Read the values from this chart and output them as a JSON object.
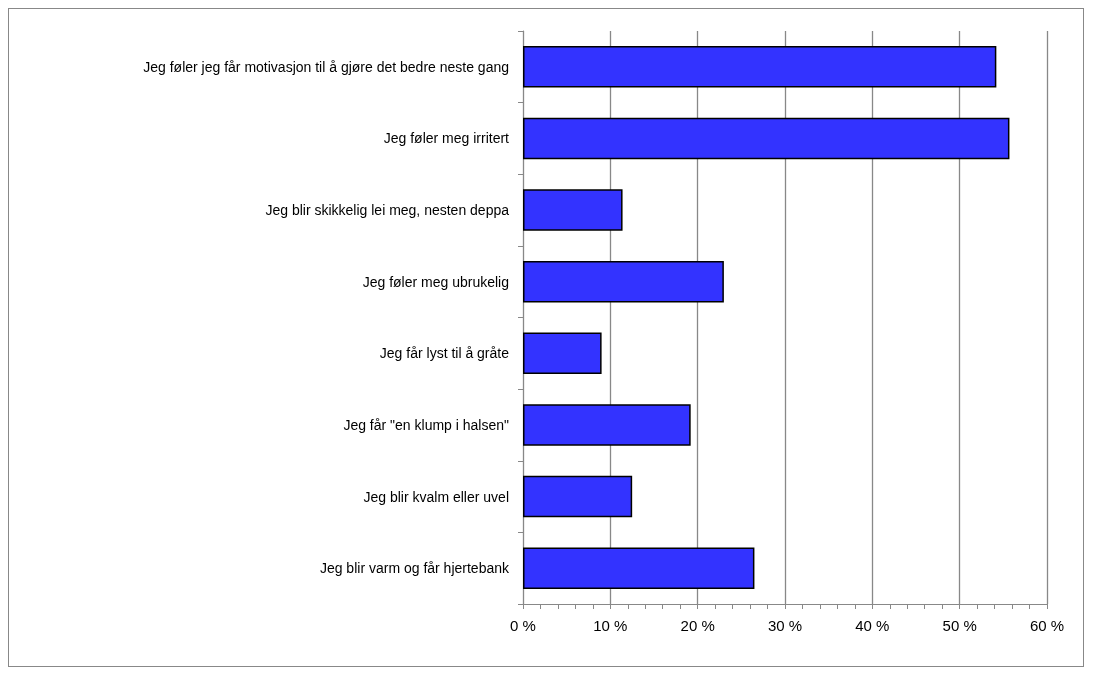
{
  "chart_data": {
    "type": "bar",
    "orientation": "horizontal",
    "categories": [
      "Jeg føler jeg får motivasjon til å gjøre det bedre neste gang",
      "Jeg føler meg irritert",
      "Jeg blir skikkelig lei meg, nesten deppa",
      "Jeg føler meg ubrukelig",
      "Jeg får lyst til å gråte",
      "Jeg får \"en klump i halsen\"",
      "Jeg blir kvalm eller uvel",
      "Jeg blir varm og får hjertebank"
    ],
    "values": [
      54.2,
      55.7,
      11.4,
      23.0,
      9.0,
      19.2,
      12.5,
      26.5
    ],
    "color": "#3333ff",
    "xlim": [
      0,
      60
    ],
    "xticks": [
      {
        "value": 0,
        "label": "0 %"
      },
      {
        "value": 2,
        "label": null
      },
      {
        "value": 4,
        "label": null
      },
      {
        "value": 6,
        "label": null
      },
      {
        "value": 8,
        "label": null
      },
      {
        "value": 10,
        "label": "10 %"
      },
      {
        "value": 12,
        "label": null
      },
      {
        "value": 14,
        "label": null
      },
      {
        "value": 16,
        "label": null
      },
      {
        "value": 18,
        "label": null
      },
      {
        "value": 20,
        "label": "20 %"
      },
      {
        "value": 22,
        "label": null
      },
      {
        "value": 24,
        "label": null
      },
      {
        "value": 26,
        "label": null
      },
      {
        "value": 28,
        "label": null
      },
      {
        "value": 30,
        "label": "30 %"
      },
      {
        "value": 32,
        "label": null
      },
      {
        "value": 34,
        "label": null
      },
      {
        "value": 36,
        "label": null
      },
      {
        "value": 38,
        "label": null
      },
      {
        "value": 40,
        "label": "40 %"
      },
      {
        "value": 42,
        "label": null
      },
      {
        "value": 44,
        "label": null
      },
      {
        "value": 46,
        "label": null
      },
      {
        "value": 48,
        "label": null
      },
      {
        "value": 50,
        "label": "50 %"
      },
      {
        "value": 52,
        "label": null
      },
      {
        "value": 54,
        "label": null
      },
      {
        "value": 56,
        "label": null
      },
      {
        "value": 58,
        "label": null
      },
      {
        "value": 60,
        "label": "60 %"
      }
    ],
    "grid": "x"
  }
}
